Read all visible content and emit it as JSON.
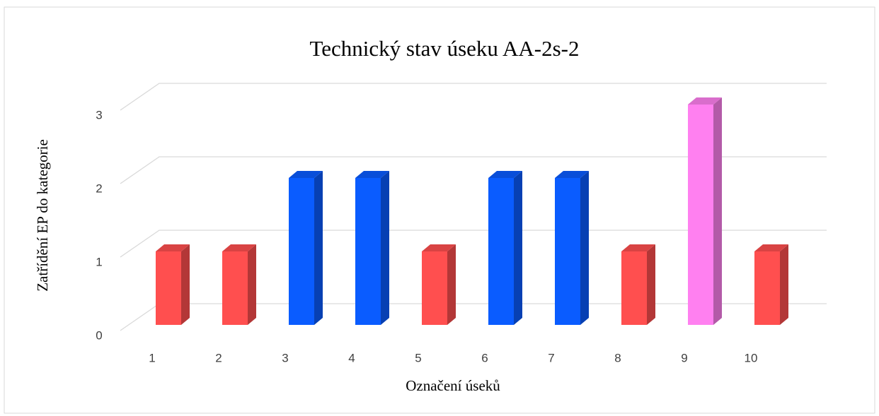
{
  "chart_data": {
    "type": "bar3d",
    "title": "Technický stav úseku AA-2s-2",
    "x_label": "Označení úseků",
    "y_label": "Zatřídění EP do kategorie",
    "categories": [
      "1",
      "2",
      "3",
      "4",
      "5",
      "6",
      "7",
      "8",
      "9",
      "10"
    ],
    "values": [
      1,
      1,
      2,
      2,
      1,
      2,
      2,
      1,
      3,
      1
    ],
    "colors": [
      "#ff4f4f",
      "#ff4f4f",
      "#0a5cff",
      "#0a5cff",
      "#ff4f4f",
      "#0a5cff",
      "#0a5cff",
      "#ff4f4f",
      "#ff80f0",
      "#ff4f4f"
    ],
    "ylim": [
      0,
      3
    ],
    "yticks": [
      0,
      1,
      2,
      3
    ],
    "grid": true
  }
}
